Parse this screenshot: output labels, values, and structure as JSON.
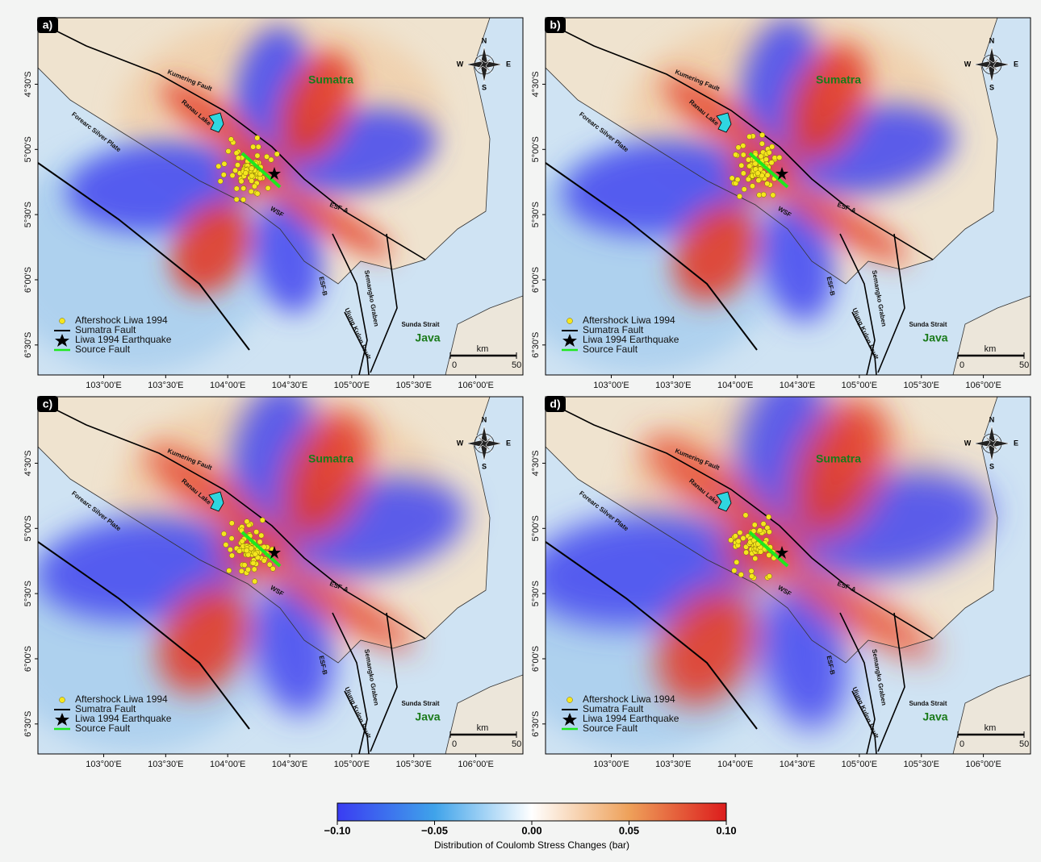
{
  "panels": [
    {
      "label": "a)"
    },
    {
      "label": "b)"
    },
    {
      "label": "c)"
    },
    {
      "label": "d)"
    }
  ],
  "map": {
    "xlim": [
      102.47,
      106.38
    ],
    "ylim": [
      -6.73,
      -3.99
    ],
    "lon_ticks": [
      {
        "value": 103,
        "label": "103°00'E"
      },
      {
        "value": 103.5,
        "label": "103°30'E"
      },
      {
        "value": 104,
        "label": "104°00'E"
      },
      {
        "value": 104.5,
        "label": "104°30'E"
      },
      {
        "value": 105,
        "label": "105°00'E"
      },
      {
        "value": 105.5,
        "label": "105°30'E"
      },
      {
        "value": 106,
        "label": "106°00'E"
      }
    ],
    "lat_ticks": [
      {
        "value": -4.5,
        "label": "4°30'S"
      },
      {
        "value": -5,
        "label": "5°00'S"
      },
      {
        "value": -5.5,
        "label": "5°30'S"
      },
      {
        "value": -6,
        "label": "6°00'S"
      },
      {
        "value": -6.5,
        "label": "6°30'S"
      }
    ],
    "places": {
      "kumering": "Kumering Fault",
      "ranau": "Ranau Lake",
      "sumatra": "Sumatra",
      "forearc": "Forearc Silver Plate",
      "esfa": "ESF-A",
      "wsf": "WSF",
      "esfb": "ESF-B",
      "semangko": "Semangko Graben",
      "ujung": "Ujung Kulon Fault",
      "sunda": "Sunda Strait",
      "java": "Java"
    },
    "compass": {
      "n": "N",
      "e": "E",
      "s": "S",
      "w": "W"
    },
    "legend": [
      "Aftershock Liwa 1994",
      "Sumatra Fault",
      "Liwa 1994 Earthquake",
      "Source Fault"
    ],
    "scale_bar": {
      "unit": "km",
      "ticks": [
        0,
        50
      ]
    }
  },
  "colorbar": {
    "title": "Distribution of Coulomb Stress Changes (bar)",
    "lim": [
      -0.1,
      0.1
    ],
    "ticks": [
      {
        "value": -0.1,
        "label": "−0.10"
      },
      {
        "value": -0.05,
        "label": "−0.05"
      },
      {
        "value": 0,
        "label": "0.00"
      },
      {
        "value": 0.05,
        "label": "0.05"
      },
      {
        "value": 0.1,
        "label": "0.10"
      }
    ]
  }
}
